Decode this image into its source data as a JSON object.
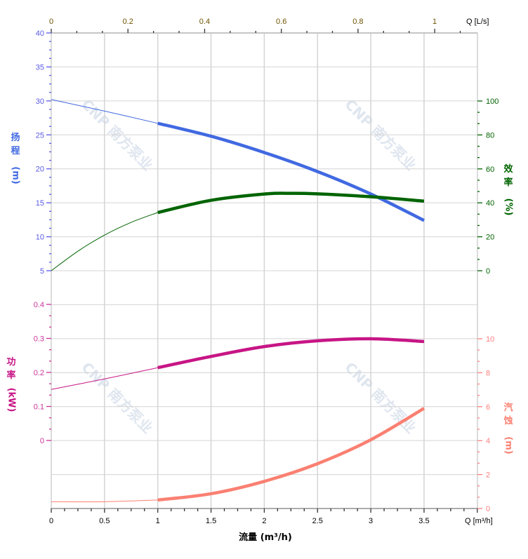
{
  "chart_data": {
    "type": "line",
    "title": "",
    "x_axis": {
      "label": "流量 (m³/h)",
      "unit_label": "Q [m³/h]",
      "range": [
        0,
        4
      ],
      "ticks": [
        0,
        0.5,
        1,
        1.5,
        2,
        2.5,
        3,
        3.5
      ]
    },
    "x2_axis": {
      "unit_label": "Q [L/s]",
      "range": [
        0,
        1.111
      ],
      "ticks": [
        0,
        0.2,
        0.4,
        0.6,
        0.8,
        1
      ]
    },
    "grid": true,
    "watermark": "CNP 南方泵业",
    "series": [
      {
        "name": "扬程",
        "axis_label": [
          "扬",
          "程",
          "(m)"
        ],
        "color": "#4169E1",
        "axis_color": "#5A5AE6",
        "range": [
          5,
          40
        ],
        "ticks": [
          5,
          10,
          15,
          20,
          25,
          30,
          35,
          40
        ],
        "x": [
          0,
          0.5,
          1,
          1.5,
          2,
          2.5,
          3,
          3.5
        ],
        "y": [
          30.2,
          28.5,
          26.7,
          24.8,
          22.4,
          19.6,
          16.3,
          12.4
        ],
        "operating_range": [
          1,
          3.5
        ]
      },
      {
        "name": "效率",
        "axis_label": [
          "效",
          "率",
          "(%)"
        ],
        "color": "#006400",
        "axis_color": "#006400",
        "range": [
          0,
          100
        ],
        "ticks": [
          0,
          20,
          40,
          60,
          80,
          100
        ],
        "x": [
          0,
          0.25,
          0.5,
          0.75,
          1,
          1.5,
          2,
          2.25,
          2.5,
          3,
          3.5
        ],
        "y": [
          0,
          11.5,
          21,
          28.5,
          34.3,
          41.5,
          45.2,
          45.6,
          45.3,
          43.6,
          41
        ],
        "operating_range": [
          1,
          3.5
        ]
      },
      {
        "name": "功率",
        "axis_label": [
          "功",
          "率",
          "(kW)"
        ],
        "color": "#C71585",
        "axis_color": "#CC3399",
        "range": [
          0,
          0.4
        ],
        "ticks": [
          0,
          0.1,
          0.2,
          0.3,
          0.4
        ],
        "x": [
          0,
          0.5,
          1,
          1.5,
          2,
          2.5,
          3,
          3.5
        ],
        "y": [
          0.15,
          0.181,
          0.214,
          0.247,
          0.276,
          0.293,
          0.299,
          0.291
        ],
        "operating_range": [
          1,
          3.5
        ]
      },
      {
        "name": "汽蚀",
        "axis_label": [
          "汽",
          "蚀",
          "(m)"
        ],
        "color": "#FA8072",
        "axis_color": "#FF7F7F",
        "range": [
          0,
          10
        ],
        "ticks": [
          0,
          2,
          4,
          6,
          8,
          10
        ],
        "x": [
          0,
          0.5,
          1,
          1.5,
          2,
          2.5,
          3,
          3.5
        ],
        "y": [
          0.4,
          0.4,
          0.5,
          0.87,
          1.6,
          2.64,
          4.05,
          5.9
        ],
        "operating_range": [
          1,
          3.5
        ]
      }
    ]
  }
}
